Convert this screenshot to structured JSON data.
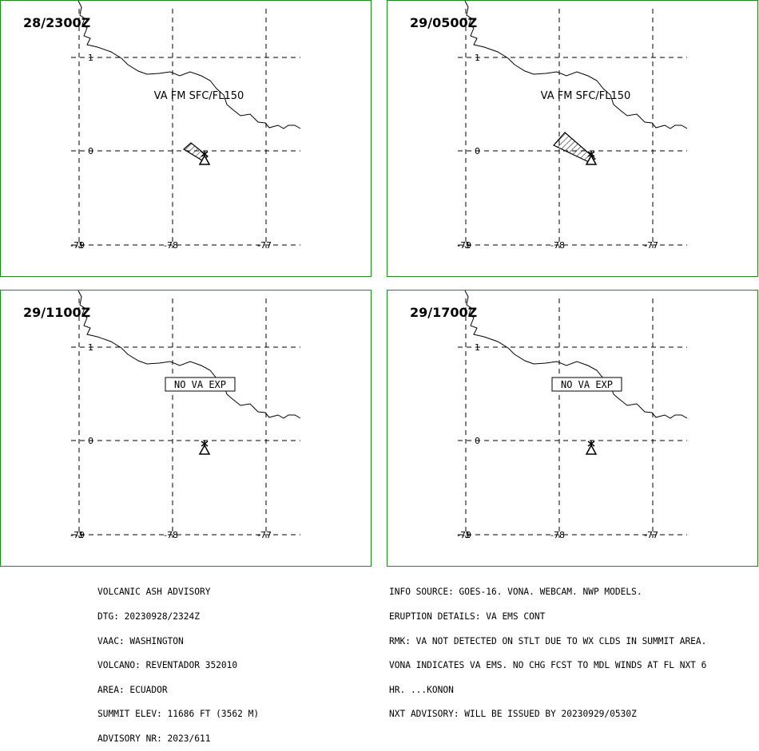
{
  "panels": [
    {
      "time": "28/2300Z",
      "mode": "ash",
      "label": "VA FM SFC/FL150",
      "plume": "small"
    },
    {
      "time": "29/0500Z",
      "mode": "ash",
      "label": "VA FM SFC/FL150",
      "plume": "large"
    },
    {
      "time": "29/1100Z",
      "mode": "none",
      "label": "NO VA EXP"
    },
    {
      "time": "29/1700Z",
      "mode": "none",
      "label": "NO VA EXP"
    }
  ],
  "lat_labels": [
    "1",
    "0",
    "-1"
  ],
  "lon_labels": [
    "-79",
    "-78",
    "-77"
  ],
  "advisory_left": [
    "VOLCANIC ASH ADVISORY",
    "DTG: 20230928/2324Z",
    "VAAC: WASHINGTON",
    "VOLCANO: REVENTADOR 352010",
    "AREA: ECUADOR",
    "SUMMIT ELEV: 11686 FT (3562 M)",
    "ADVISORY NR: 2023/611"
  ],
  "advisory_right": [
    "INFO SOURCE: GOES-16. VONA. WEBCAM. NWP MODELS.",
    "ERUPTION DETAILS: VA EMS CONT",
    "RMK: VA NOT DETECTED ON STLT DUE TO WX CLDS IN SUMMIT AREA.",
    "VONA INDICATES VA EMS. NO CHG FCST TO MDL WINDS AT FL NXT 6",
    "HR. ...KONON",
    "NXT ADVISORY: WILL BE ISSUED BY 20230929/0530Z"
  ],
  "colors": {
    "border": "#1a8a1a",
    "ink": "#000000"
  },
  "icons": [
    "volcano-icon"
  ]
}
